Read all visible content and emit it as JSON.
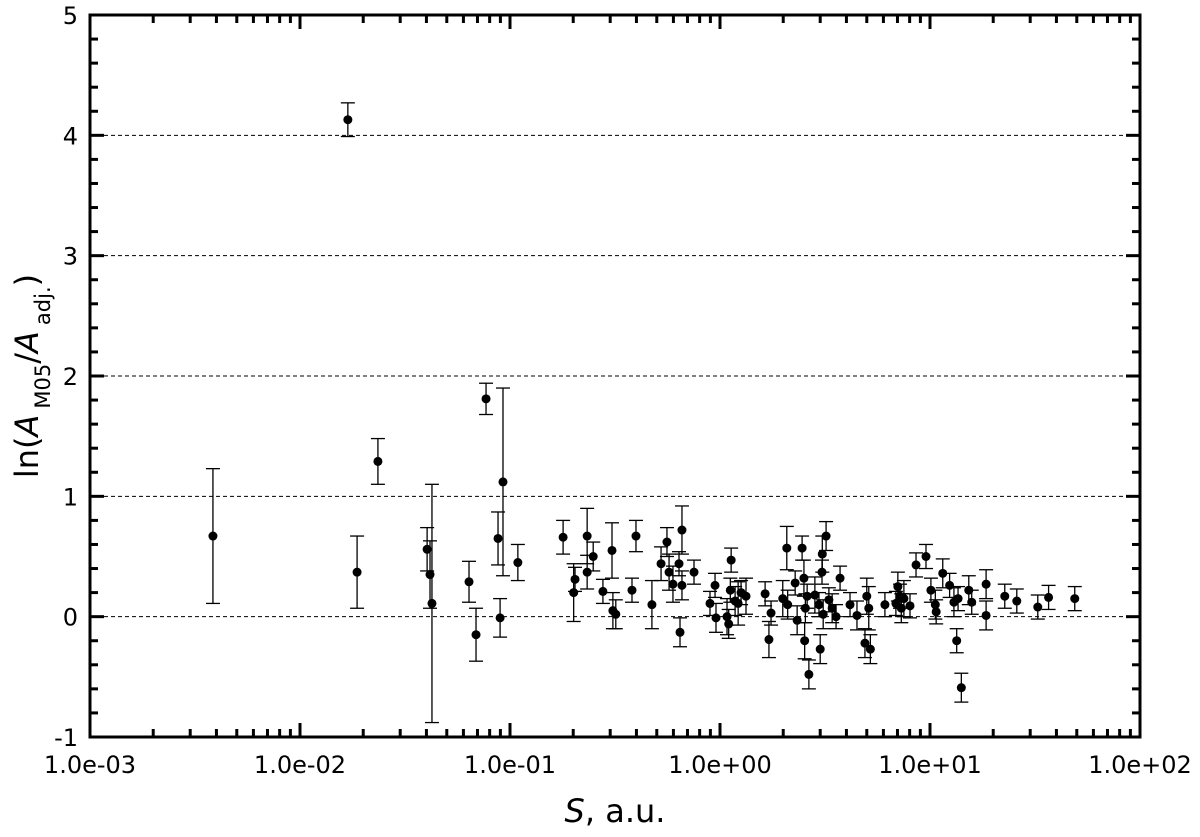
{
  "chart_data": {
    "type": "scatter",
    "xscale": "log",
    "grid": true,
    "color": "#000000",
    "xlabel": [
      "S",
      ", a.u."
    ],
    "ylabel": [
      "ln(",
      "A",
      "M05",
      "/",
      "A",
      "adj.",
      ")"
    ],
    "xlim": [
      0.001,
      100
    ],
    "ylim": [
      -1,
      5
    ],
    "xticks": [
      {
        "value": 0.001,
        "label": "1.0e-03"
      },
      {
        "value": 0.01,
        "label": "1.0e-02"
      },
      {
        "value": 0.1,
        "label": "1.0e-01"
      },
      {
        "value": 1,
        "label": "1.0e+00"
      },
      {
        "value": 10,
        "label": "1.0e+01"
      },
      {
        "value": 100,
        "label": "1.0e+02"
      }
    ],
    "yticks": [
      -1,
      0,
      1,
      2,
      3,
      4,
      5
    ],
    "xminorticks": [
      0.002,
      0.003,
      0.004,
      0.005,
      0.006,
      0.007,
      0.008,
      0.009,
      0.02,
      0.03,
      0.04,
      0.05,
      0.06,
      0.07,
      0.08,
      0.09,
      0.2,
      0.3,
      0.4,
      0.5,
      0.6,
      0.7,
      0.8,
      0.9,
      2,
      3,
      4,
      5,
      6,
      7,
      8,
      9,
      20,
      30,
      40,
      50,
      60,
      70,
      80,
      90
    ],
    "yminorticks": [
      -0.8,
      -0.6,
      -0.4,
      -0.2,
      0.2,
      0.4,
      0.6,
      0.8,
      1.2,
      1.4,
      1.6,
      1.8,
      2.2,
      2.4,
      2.6,
      2.8,
      3.2,
      3.4,
      3.6,
      3.8,
      4.2,
      4.4,
      4.6,
      4.8
    ],
    "x": [
      0.00385,
      0.0169,
      0.0187,
      0.0235,
      0.0403,
      0.0416,
      0.0425,
      0.0638,
      0.0689,
      0.0769,
      0.0877,
      0.0897,
      0.0926,
      0.109,
      0.179,
      0.201,
      0.204,
      0.233,
      0.233,
      0.249,
      0.277,
      0.306,
      0.309,
      0.319,
      0.381,
      0.398,
      0.474,
      0.524,
      0.559,
      0.572,
      0.597,
      0.638,
      0.645,
      0.659,
      0.659,
      0.752,
      0.896,
      0.947,
      0.957,
      1.08,
      1.12,
      1.1,
      1.13,
      1.18,
      1.22,
      1.26,
      1.33,
      1.64,
      1.71,
      1.75,
      1.99,
      2.08,
      2.1,
      2.28,
      2.33,
      2.46,
      2.51,
      2.53,
      2.55,
      2.6,
      2.65,
      2.83,
      2.96,
      3.0,
      3.06,
      3.1,
      3.2,
      3.07,
      3.3,
      3.42,
      3.57,
      3.73,
      4.16,
      4.49,
      4.9,
      5.0,
      5.11,
      5.2,
      6.1,
      6.88,
      7.03,
      7.2,
      7.3,
      7.51,
      8.03,
      8.58,
      9.57,
      10.1,
      10.6,
      10.7,
      11.5,
      12.4,
      13.0,
      13.4,
      13.6,
      14.1,
      15.3,
      15.8,
      18.5,
      18.5,
      22.7,
      25.9,
      32.6,
      36.7,
      48.9
    ],
    "values": [
      0.67,
      4.13,
      0.37,
      1.29,
      0.56,
      0.35,
      0.11,
      0.29,
      -0.15,
      1.81,
      0.65,
      -0.01,
      1.12,
      0.45,
      0.66,
      0.2,
      0.31,
      0.67,
      0.37,
      0.5,
      0.21,
      0.55,
      0.05,
      0.02,
      0.22,
      0.67,
      0.1,
      0.44,
      0.62,
      0.37,
      0.27,
      0.44,
      -0.13,
      0.72,
      0.26,
      0.37,
      0.11,
      0.26,
      -0.01,
      0.0,
      0.22,
      -0.06,
      0.47,
      0.13,
      0.11,
      0.2,
      0.17,
      0.19,
      -0.19,
      0.03,
      0.15,
      0.57,
      0.1,
      0.28,
      -0.03,
      0.57,
      0.32,
      -0.2,
      0.07,
      0.17,
      -0.48,
      0.18,
      0.1,
      -0.27,
      0.37,
      0.02,
      0.67,
      0.52,
      0.14,
      0.07,
      0.0,
      0.32,
      0.1,
      0.01,
      -0.22,
      0.17,
      0.07,
      -0.27,
      0.1,
      0.11,
      0.25,
      0.17,
      0.07,
      0.15,
      0.09,
      0.43,
      0.5,
      0.22,
      0.1,
      0.04,
      0.36,
      0.26,
      0.12,
      -0.2,
      0.15,
      -0.59,
      0.22,
      0.12,
      0.27,
      0.01,
      0.17,
      0.13,
      0.08,
      0.16,
      0.15
    ],
    "errors": [
      0.56,
      0.14,
      0.3,
      0.19,
      0.18,
      0.28,
      0.99,
      0.17,
      0.22,
      0.13,
      0.22,
      0.16,
      0.78,
      0.15,
      0.14,
      0.24,
      0.1,
      0.23,
      0.14,
      0.12,
      0.1,
      0.23,
      0.15,
      0.12,
      0.1,
      0.13,
      0.2,
      0.14,
      0.12,
      0.15,
      0.15,
      0.1,
      0.12,
      0.2,
      0.12,
      0.1,
      0.1,
      0.1,
      0.12,
      0.15,
      0.1,
      0.12,
      0.1,
      0.12,
      0.18,
      0.1,
      0.15,
      0.1,
      0.15,
      0.1,
      0.15,
      0.18,
      0.12,
      0.1,
      0.12,
      0.1,
      0.15,
      0.15,
      0.12,
      0.1,
      0.12,
      0.15,
      0.1,
      0.12,
      0.1,
      0.12,
      0.12,
      0.15,
      0.1,
      0.12,
      0.1,
      0.1,
      0.1,
      0.12,
      0.12,
      0.15,
      0.18,
      0.12,
      0.1,
      0.1,
      0.12,
      0.1,
      0.12,
      0.15,
      0.1,
      0.1,
      0.1,
      0.1,
      0.12,
      0.1,
      0.12,
      0.1,
      0.12,
      0.1,
      0.1,
      0.12,
      0.12,
      0.1,
      0.12,
      0.12,
      0.1,
      0.1,
      0.1,
      0.1,
      0.1
    ]
  }
}
